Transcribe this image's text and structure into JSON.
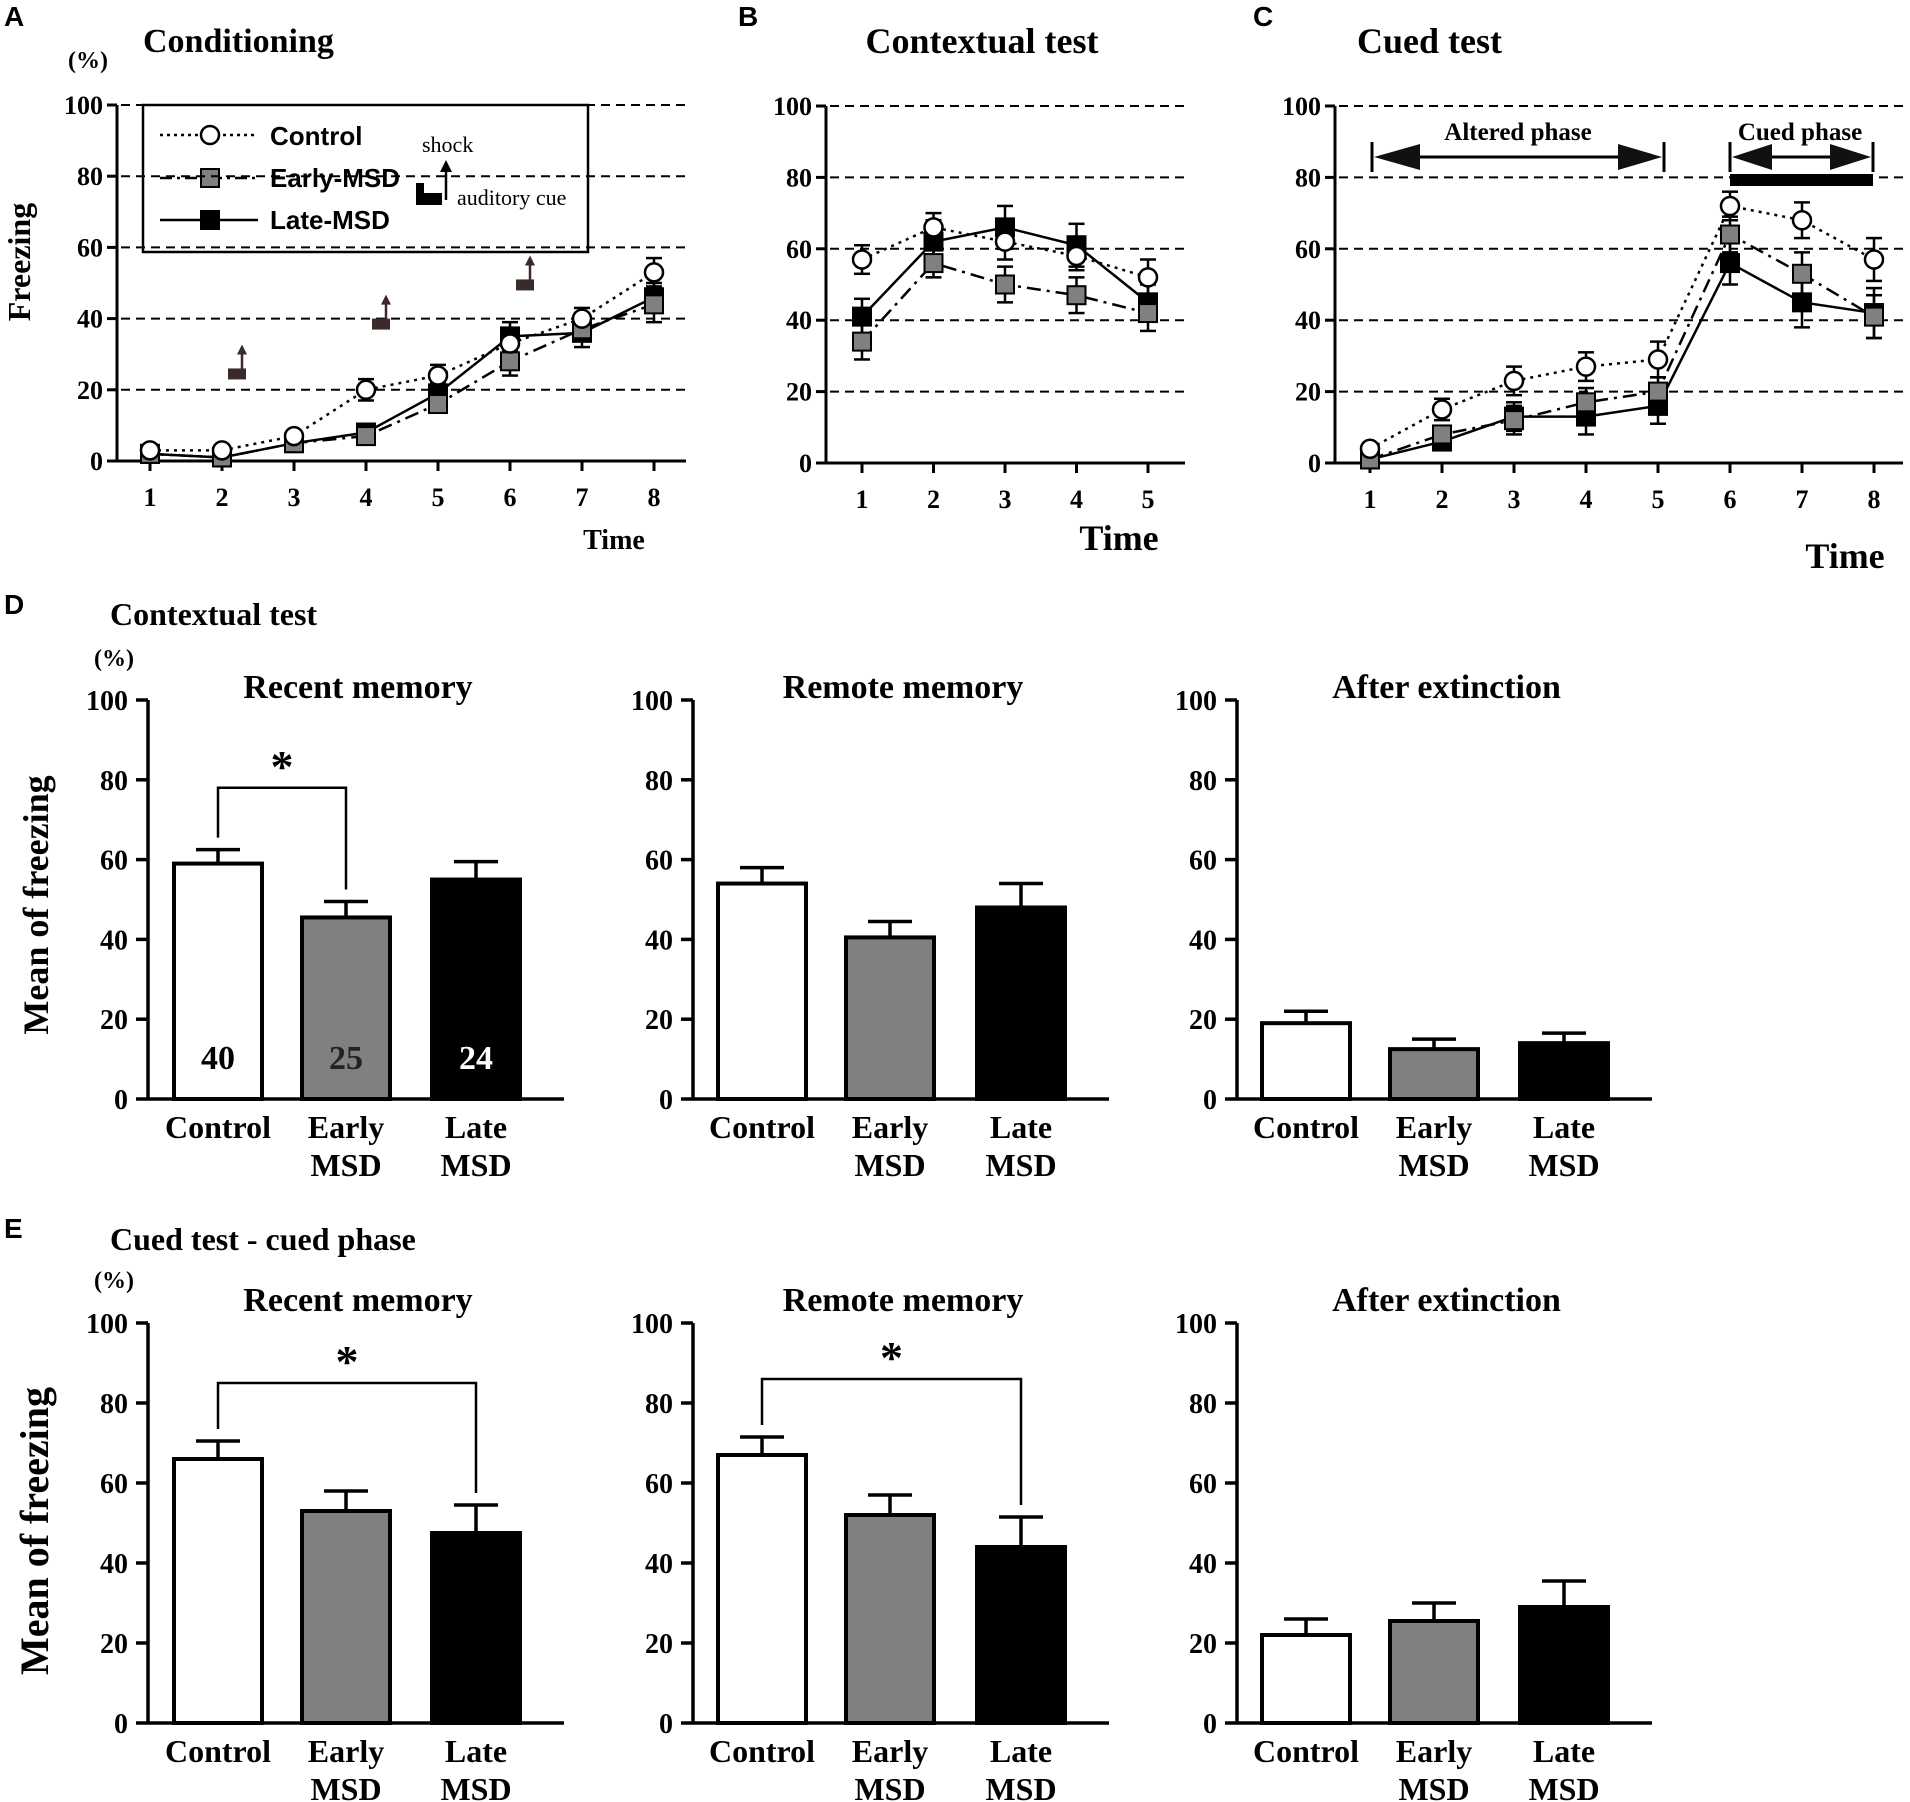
{
  "figure_labels": {
    "A": "A",
    "B": "B",
    "C": "C",
    "D": "D",
    "E": "E"
  },
  "percent_unit": "(%)",
  "colors": {
    "control": "#ffffff",
    "early": "#808080",
    "late": "#000000",
    "shock_icon": "#3a2a2a"
  },
  "icons": {
    "shock": "shock-arrow-icon",
    "cue": "auditory-cue-bar-icon"
  },
  "chart_data": [
    {
      "id": "A",
      "type": "line",
      "title": "Conditioning",
      "xlabel": "Time",
      "ylabel": "Freezing",
      "ylim": [
        0,
        100
      ],
      "yticks": [
        0,
        20,
        40,
        60,
        80,
        100
      ],
      "grid_lines": [
        20,
        40,
        60,
        80,
        100
      ],
      "x": [
        1,
        2,
        3,
        4,
        5,
        6,
        7,
        8
      ],
      "series": [
        {
          "name": "Control",
          "values": [
            3,
            3,
            7,
            20,
            24,
            33,
            40,
            53
          ],
          "errors": [
            1,
            1,
            1.5,
            3,
            3,
            3,
            3,
            4
          ]
        },
        {
          "name": "Early-MSD",
          "values": [
            2,
            1,
            5,
            7,
            16,
            28,
            37,
            44
          ],
          "errors": [
            1,
            1,
            1.5,
            2,
            2,
            4,
            3,
            5
          ]
        },
        {
          "name": "Late-MSD",
          "values": [
            2,
            1,
            5,
            8,
            19,
            35,
            36,
            46
          ],
          "errors": [
            1,
            1,
            1.5,
            2,
            3,
            4,
            4,
            4
          ]
        }
      ],
      "legend": {
        "position": "top-left",
        "entries": [
          "Control",
          "Early-MSD",
          "Late-MSD"
        ],
        "shock_label": "shock",
        "cue_label": "auditory cue"
      },
      "annotations": [
        {
          "kind": "shock+cue",
          "x": 2,
          "y": 26
        },
        {
          "kind": "shock+cue",
          "x": 4,
          "y": 40
        },
        {
          "kind": "shock+cue",
          "x": 6,
          "y": 51
        }
      ]
    },
    {
      "id": "B",
      "type": "line",
      "title": "Contextual test",
      "xlabel": "Time",
      "ylim": [
        0,
        100
      ],
      "yticks": [
        0,
        20,
        40,
        60,
        80,
        100
      ],
      "grid_lines": [
        20,
        40,
        60,
        80,
        100
      ],
      "x": [
        1,
        2,
        3,
        4,
        5
      ],
      "series": [
        {
          "name": "Control",
          "values": [
            57,
            66,
            62,
            58,
            52
          ],
          "errors": [
            4,
            4,
            5,
            4,
            5
          ]
        },
        {
          "name": "Early-MSD",
          "values": [
            34,
            56,
            50,
            47,
            42
          ],
          "errors": [
            5,
            4,
            5,
            5,
            5
          ]
        },
        {
          "name": "Late-MSD",
          "values": [
            41,
            62,
            66,
            61,
            45
          ],
          "errors": [
            5,
            6,
            6,
            6,
            5
          ]
        }
      ]
    },
    {
      "id": "C",
      "type": "line",
      "title": "Cued test",
      "xlabel": "Time",
      "ylim": [
        0,
        100
      ],
      "yticks": [
        0,
        20,
        40,
        60,
        80,
        100
      ],
      "grid_lines": [
        20,
        40,
        60,
        80,
        100
      ],
      "x": [
        1,
        2,
        3,
        4,
        5,
        6,
        7,
        8
      ],
      "series": [
        {
          "name": "Control",
          "values": [
            4,
            15,
            23,
            27,
            29,
            72,
            68,
            57
          ],
          "errors": [
            1,
            3,
            4,
            4,
            5,
            4,
            5,
            6
          ]
        },
        {
          "name": "Early-MSD",
          "values": [
            1,
            8,
            12,
            17,
            20,
            64,
            53,
            41
          ],
          "errors": [
            1,
            2,
            4,
            4,
            4,
            5,
            6,
            6
          ]
        },
        {
          "name": "Late-MSD",
          "values": [
            1,
            6,
            13,
            13,
            16,
            56,
            45,
            42
          ],
          "errors": [
            1,
            2,
            4,
            5,
            5,
            6,
            7,
            7
          ]
        }
      ],
      "phases": [
        {
          "label": "Altered phase",
          "from": 1,
          "to": 5
        },
        {
          "label": "Cued phase",
          "from": 6,
          "to": 8
        }
      ]
    },
    {
      "id": "D1",
      "type": "bar",
      "group_title": "Contextual test",
      "title": "Recent memory",
      "ylabel": "Mean of freezing",
      "ylim": [
        0,
        100
      ],
      "yticks": [
        0,
        20,
        40,
        60,
        80,
        100
      ],
      "categories": [
        [
          "Control"
        ],
        [
          "Early",
          "MSD"
        ],
        [
          "Late",
          "MSD"
        ]
      ],
      "values": [
        59,
        45.5,
        55
      ],
      "errors": [
        3.5,
        4,
        4.5
      ],
      "bar_labels": [
        "40",
        "25",
        "24"
      ],
      "significance": {
        "from": 0,
        "to": 1,
        "label": "*",
        "level": 78
      }
    },
    {
      "id": "D2",
      "type": "bar",
      "title": "Remote memory",
      "ylim": [
        0,
        100
      ],
      "yticks": [
        0,
        20,
        40,
        60,
        80,
        100
      ],
      "categories": [
        [
          "Control"
        ],
        [
          "Early",
          "MSD"
        ],
        [
          "Late",
          "MSD"
        ]
      ],
      "values": [
        54,
        40.5,
        48
      ],
      "errors": [
        4,
        4,
        6
      ]
    },
    {
      "id": "D3",
      "type": "bar",
      "title": "After extinction",
      "ylim": [
        0,
        100
      ],
      "yticks": [
        0,
        20,
        40,
        60,
        80,
        100
      ],
      "categories": [
        [
          "Control"
        ],
        [
          "Early",
          "MSD"
        ],
        [
          "Late",
          "MSD"
        ]
      ],
      "values": [
        19,
        12.5,
        14
      ],
      "errors": [
        3,
        2.5,
        2.5
      ]
    },
    {
      "id": "E1",
      "type": "bar",
      "group_title": "Cued test - cued phase",
      "title": "Recent memory",
      "ylabel": "Mean of freezing",
      "ylim": [
        0,
        100
      ],
      "yticks": [
        0,
        20,
        40,
        60,
        80,
        100
      ],
      "categories": [
        [
          "Control"
        ],
        [
          "Early",
          "MSD"
        ],
        [
          "Late",
          "MSD"
        ]
      ],
      "values": [
        66,
        53,
        47.5
      ],
      "errors": [
        4.5,
        5,
        7
      ],
      "significance": {
        "from": 0,
        "to": 2,
        "label": "*",
        "level": 85
      }
    },
    {
      "id": "E2",
      "type": "bar",
      "title": "Remote memory",
      "ylim": [
        0,
        100
      ],
      "yticks": [
        0,
        20,
        40,
        60,
        80,
        100
      ],
      "categories": [
        [
          "Control"
        ],
        [
          "Early",
          "MSD"
        ],
        [
          "Late",
          "MSD"
        ]
      ],
      "values": [
        67,
        52,
        44
      ],
      "errors": [
        4.5,
        5,
        7.5
      ],
      "significance": {
        "from": 0,
        "to": 2,
        "label": "*",
        "level": 86
      }
    },
    {
      "id": "E3",
      "type": "bar",
      "title": "After extinction",
      "ylim": [
        0,
        100
      ],
      "yticks": [
        0,
        20,
        40,
        60,
        80,
        100
      ],
      "categories": [
        [
          "Control"
        ],
        [
          "Early",
          "MSD"
        ],
        [
          "Late",
          "MSD"
        ]
      ],
      "values": [
        22,
        25.5,
        29
      ],
      "errors": [
        4,
        4.5,
        6.5
      ]
    }
  ]
}
